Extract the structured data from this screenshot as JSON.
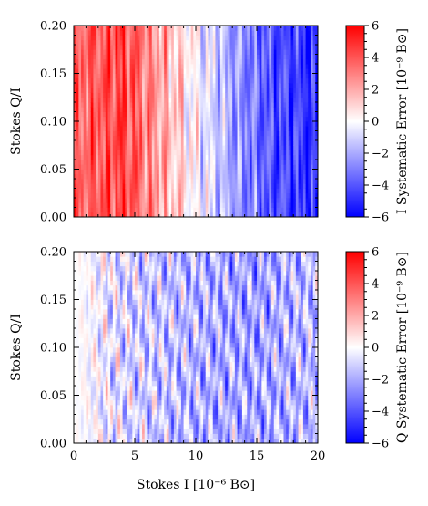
{
  "chart_data": [
    {
      "type": "heatmap",
      "title": "",
      "xlabel": "",
      "ylabel": "Stokes Q/I",
      "xlim": [
        0,
        20
      ],
      "ylim": [
        0.0,
        0.2
      ],
      "x_ticks": [
        0,
        5,
        10,
        15,
        20
      ],
      "y_ticks": [
        "0.00",
        "0.05",
        "0.10",
        "0.15",
        "0.20"
      ],
      "colorbar": {
        "label": "I Systematic Error [10⁻⁹ B⊙]",
        "range": [
          -6,
          6
        ],
        "ticks": [
          "6",
          "4",
          "2",
          "0",
          "−2",
          "−4",
          "−6"
        ],
        "colormap": "bwr"
      },
      "trend": {
        "x": [
          0.5,
          4,
          8,
          12,
          16,
          20
        ],
        "value": [
          3.5,
          4.5,
          1.5,
          -1.5,
          -4.0,
          -5.0
        ]
      }
    },
    {
      "type": "heatmap",
      "title": "",
      "xlabel": "Stokes I [10⁻⁶ B⊙]",
      "ylabel": "Stokes Q/I",
      "xlim": [
        0,
        20
      ],
      "ylim": [
        0.0,
        0.2
      ],
      "x_ticks": [
        "0",
        "5",
        "10",
        "15",
        "20"
      ],
      "y_ticks": [
        "0.00",
        "0.05",
        "0.10",
        "0.15",
        "0.20"
      ],
      "colorbar": {
        "label": "Q Systematic Error [10⁻⁹ B⊙]",
        "range": [
          -6,
          6
        ],
        "ticks": [
          "6",
          "4",
          "2",
          "0",
          "−2",
          "−4",
          "−6"
        ],
        "colormap": "bwr"
      },
      "trend": {
        "x": [
          0.5,
          5,
          10,
          15,
          20
        ],
        "value": [
          0.0,
          -1.0,
          -1.8,
          -2.2,
          -1.5
        ]
      }
    }
  ],
  "colors": {
    "max": "#ff0000",
    "mid": "#ffffff",
    "min": "#0000ff"
  }
}
